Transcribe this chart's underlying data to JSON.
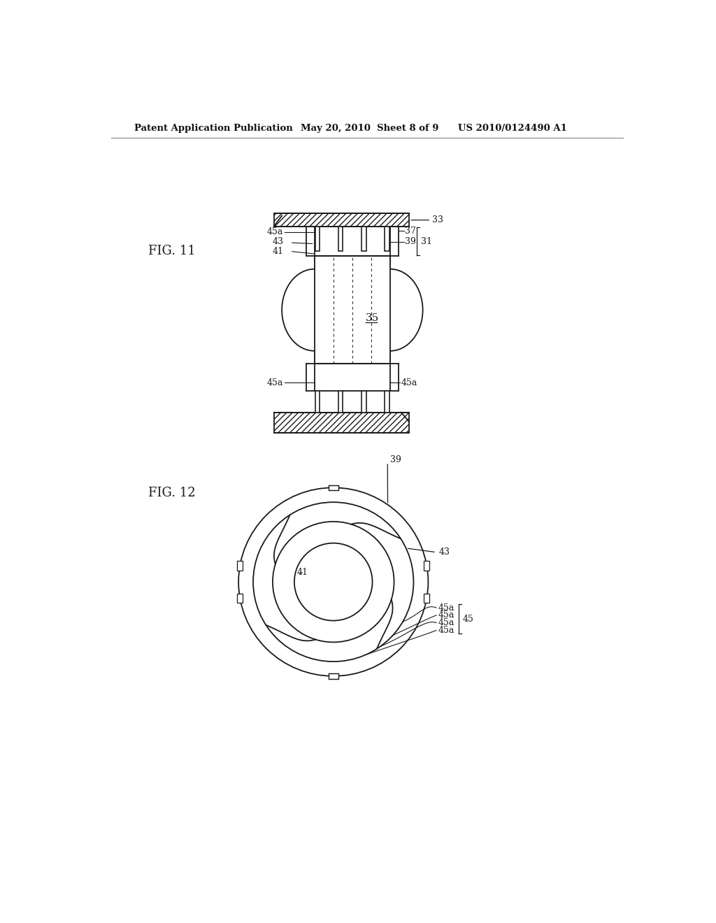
{
  "background_color": "#ffffff",
  "header_left": "Patent Application Publication",
  "header_center": "May 20, 2010  Sheet 8 of 9",
  "header_right": "US 2010/0124490 A1",
  "fig11_label": "FIG. 11",
  "fig12_label": "FIG. 12",
  "line_color": "#1a1a1a"
}
